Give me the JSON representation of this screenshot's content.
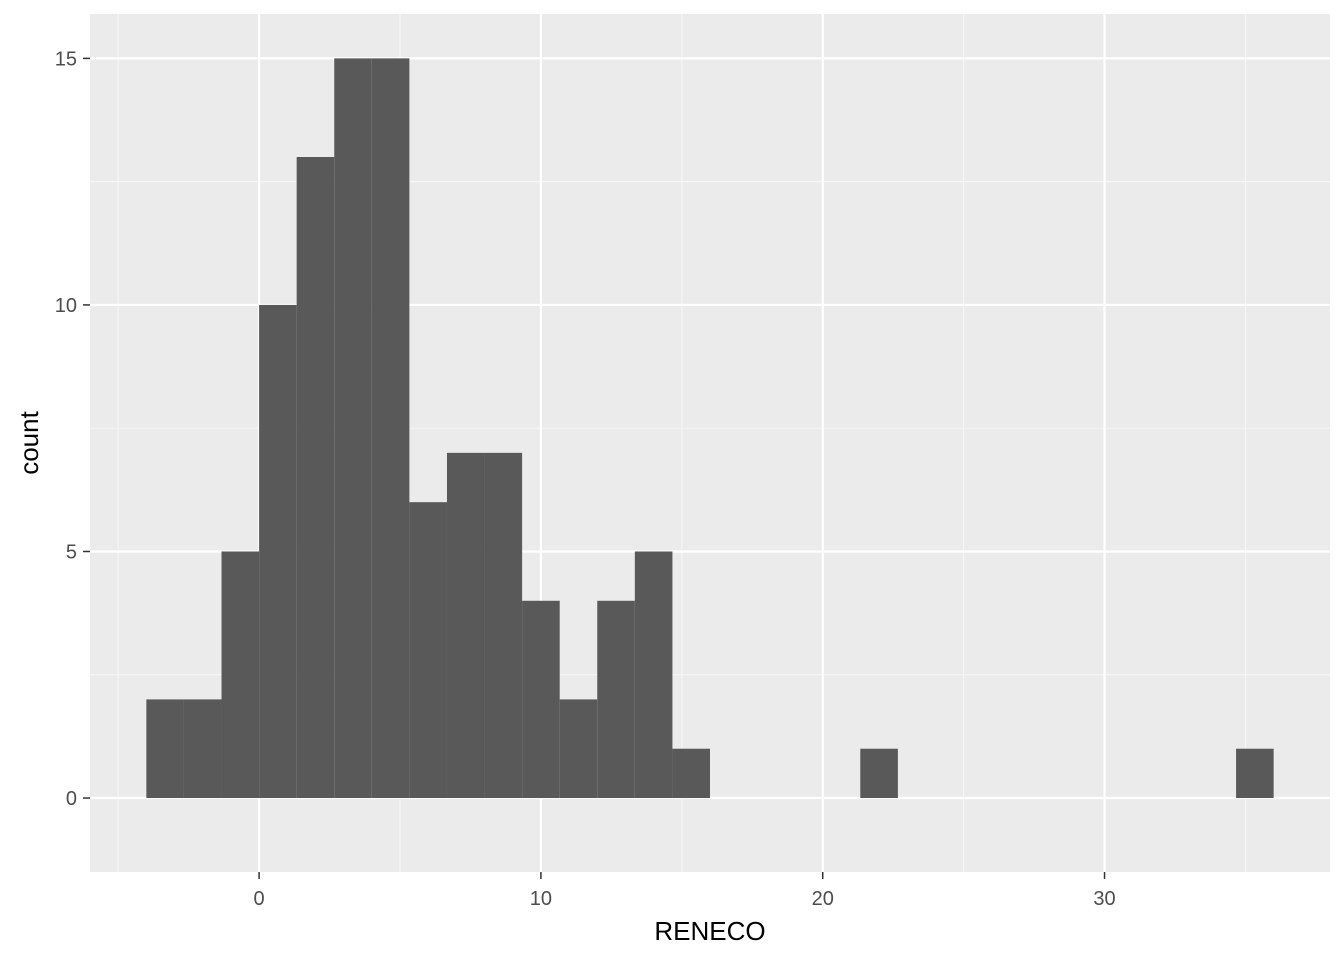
{
  "chart_data": {
    "type": "bar",
    "subtype": "histogram",
    "title": "",
    "xlabel": "RENECO",
    "ylabel": "count",
    "xlim": [
      -6,
      38
    ],
    "ylim": [
      -1.5,
      15.9
    ],
    "x_ticks": [
      0,
      10,
      20,
      30
    ],
    "x_tick_labels": [
      "0",
      "10",
      "20",
      "30"
    ],
    "y_ticks": [
      0,
      5,
      10,
      15
    ],
    "y_tick_labels": [
      "0",
      "5",
      "10",
      "15"
    ],
    "bin_width": 1.333,
    "bins": [
      {
        "x0": -4.0,
        "x1": -2.667,
        "count": 2
      },
      {
        "x0": -2.667,
        "x1": -1.333,
        "count": 2
      },
      {
        "x0": -1.333,
        "x1": 0.0,
        "count": 5
      },
      {
        "x0": 0.0,
        "x1": 1.333,
        "count": 10
      },
      {
        "x0": 1.333,
        "x1": 2.667,
        "count": 13
      },
      {
        "x0": 2.667,
        "x1": 4.0,
        "count": 15
      },
      {
        "x0": 4.0,
        "x1": 5.333,
        "count": 15
      },
      {
        "x0": 5.333,
        "x1": 6.667,
        "count": 6
      },
      {
        "x0": 6.667,
        "x1": 8.0,
        "count": 7
      },
      {
        "x0": 8.0,
        "x1": 9.333,
        "count": 7
      },
      {
        "x0": 9.333,
        "x1": 10.667,
        "count": 4
      },
      {
        "x0": 10.667,
        "x1": 12.0,
        "count": 2
      },
      {
        "x0": 12.0,
        "x1": 13.333,
        "count": 4
      },
      {
        "x0": 13.333,
        "x1": 14.667,
        "count": 5
      },
      {
        "x0": 14.667,
        "x1": 16.0,
        "count": 1
      },
      {
        "x0": 21.333,
        "x1": 22.667,
        "count": 1
      },
      {
        "x0": 34.667,
        "x1": 36.0,
        "count": 1
      }
    ],
    "grid": true,
    "legend": "none",
    "colors": {
      "panel_background": "#ebebeb",
      "grid_major": "#ffffff",
      "grid_minor": "#f5f5f5",
      "bar_fill": "#595959",
      "tick_mark": "#333333"
    }
  }
}
